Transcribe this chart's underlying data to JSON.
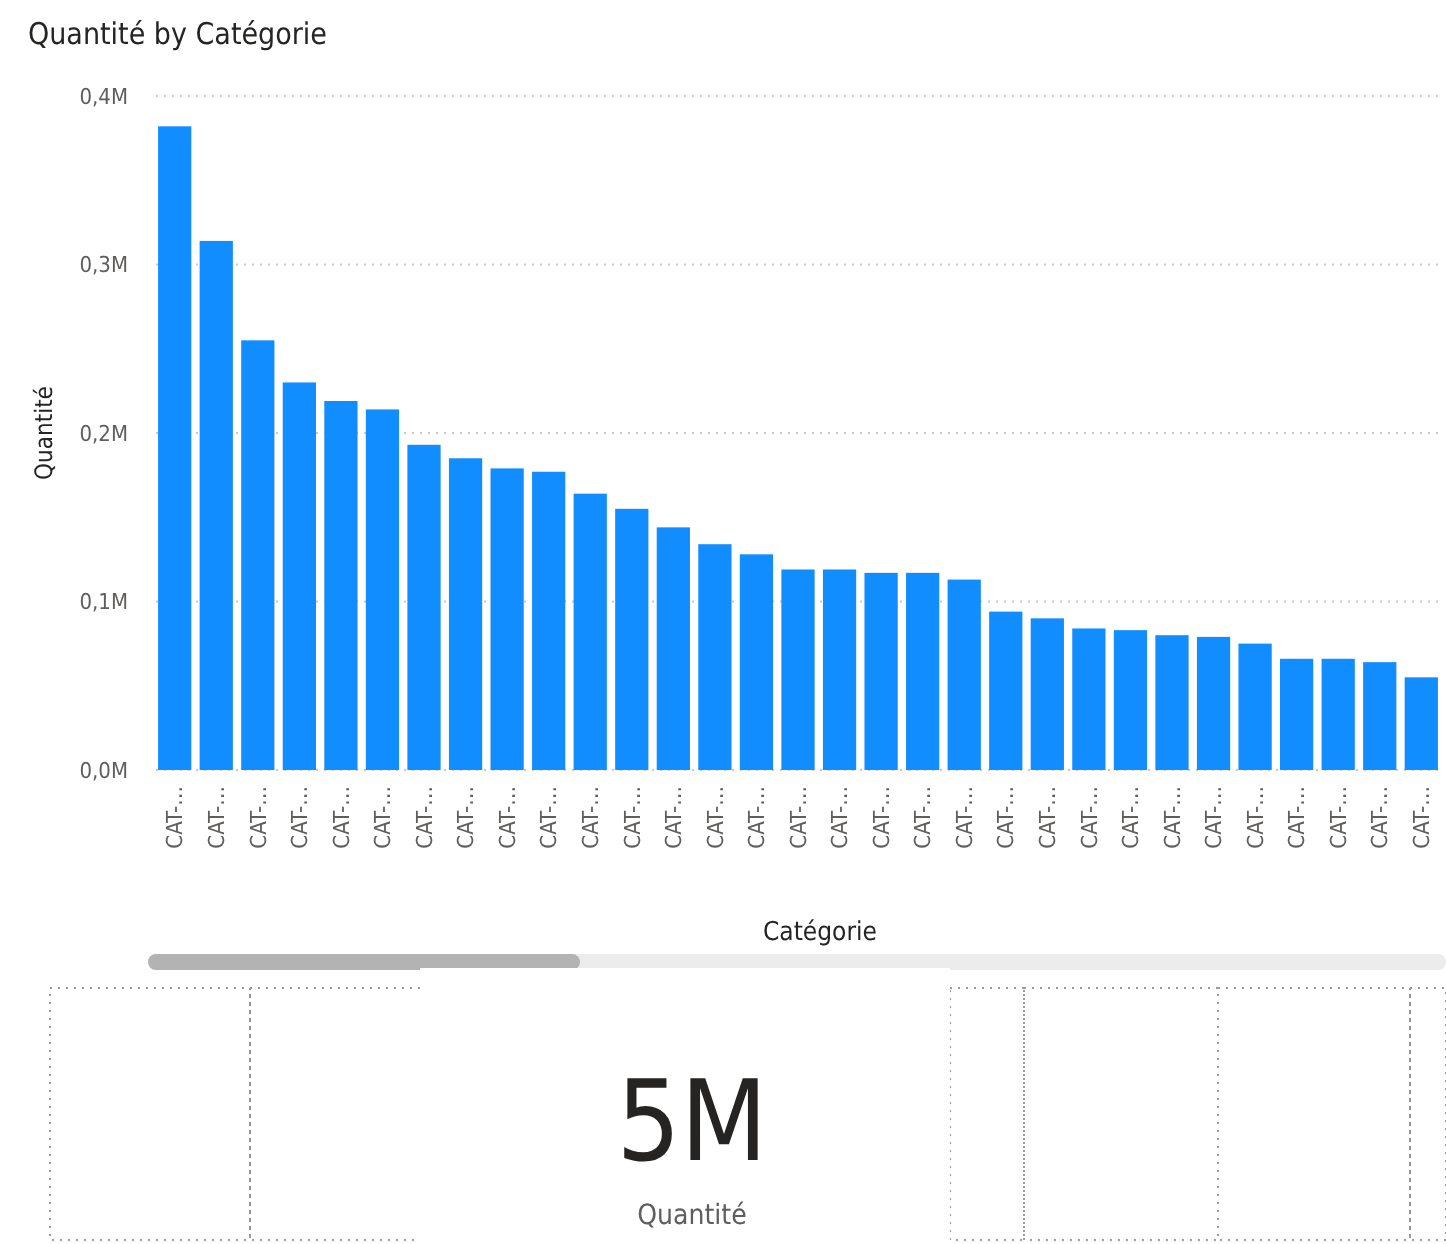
{
  "chart_data": [
    {
      "type": "bar",
      "title": "Quantité by Catégorie",
      "xlabel": "Catégorie",
      "ylabel": "Quantité",
      "color": "#118dff",
      "categories": [
        "CAT-…",
        "CAT-…",
        "CAT-…",
        "CAT-…",
        "CAT-…",
        "CAT-…",
        "CAT-…",
        "CAT-…",
        "CAT-…",
        "CAT-…",
        "CAT-…",
        "CAT-…",
        "CAT-…",
        "CAT-…",
        "CAT-…",
        "CAT-…",
        "CAT-…",
        "CAT-…",
        "CAT-…",
        "CAT-…",
        "CAT-…",
        "CAT-…",
        "CAT-…",
        "CAT-…",
        "CAT-…",
        "CAT-…",
        "CAT-…",
        "CAT-…",
        "CAT-…",
        "CAT-…",
        "CAT-…"
      ],
      "values": [
        0.382,
        0.314,
        0.255,
        0.23,
        0.219,
        0.214,
        0.193,
        0.185,
        0.179,
        0.177,
        0.164,
        0.155,
        0.144,
        0.134,
        0.128,
        0.119,
        0.119,
        0.117,
        0.117,
        0.113,
        0.094,
        0.09,
        0.084,
        0.083,
        0.08,
        0.079,
        0.075,
        0.066,
        0.066,
        0.064,
        0.055
      ],
      "ylim": [
        0,
        0.4
      ],
      "yticks": [
        {
          "value": 0,
          "label": "0,0M"
        },
        {
          "value": 0.1,
          "label": "0,1M"
        },
        {
          "value": 0.2,
          "label": "0,2M"
        },
        {
          "value": 0.3,
          "label": "0,3M"
        },
        {
          "value": 0.4,
          "label": "0,4M"
        }
      ],
      "grid": "y"
    },
    {
      "type": "other",
      "annotations": [
        "5M",
        "Quantité"
      ]
    }
  ]
}
